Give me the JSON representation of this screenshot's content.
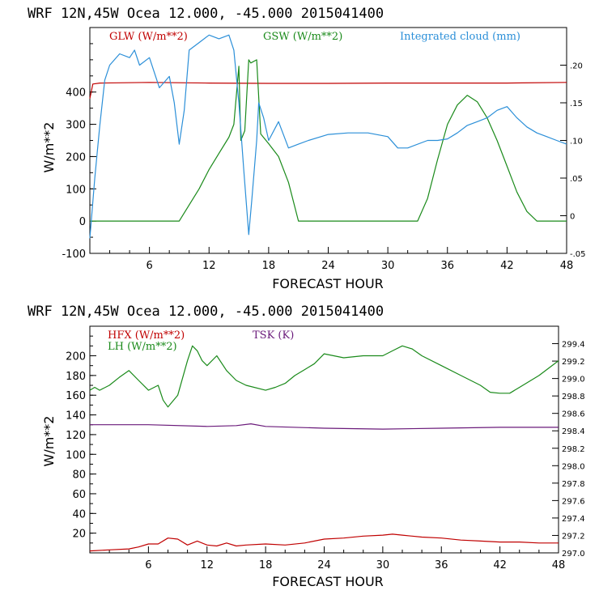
{
  "chart_data": [
    {
      "type": "line",
      "header": "WRF  12N,45W Ocea  12.000, -45.000  2015041400",
      "xlabel": "FORECAST HOUR",
      "ylabel": "W/m**2",
      "xlim": [
        0,
        48
      ],
      "xticks": [
        "6",
        "12",
        "18",
        "24",
        "30",
        "36",
        "42",
        "48"
      ],
      "ylim": [
        -100,
        600
      ],
      "yticks": [
        "-100",
        "0",
        "100",
        "200",
        "300",
        "400"
      ],
      "right_axis": {
        "ylim": [
          -0.05,
          0.25
        ],
        "ticks": [
          ".20",
          ".15",
          ".10",
          ".05",
          "0",
          "-.05"
        ]
      },
      "series": [
        {
          "name": "GLW (W/m**2)",
          "color": "#c00000",
          "axis": "left",
          "x": [
            0,
            0.3,
            1,
            6,
            12,
            18,
            24,
            30,
            36,
            42,
            48
          ],
          "y": [
            380,
            425,
            428,
            430,
            428,
            427,
            427,
            428,
            428,
            428,
            430
          ]
        },
        {
          "name": "GSW (W/m**2)",
          "color": "#1a8a1a",
          "axis": "left",
          "x": [
            0,
            9,
            10,
            11,
            12,
            13,
            14,
            14.5,
            15,
            15.2,
            15.6,
            16,
            16.2,
            16.8,
            17.2,
            18,
            19,
            20,
            21,
            33,
            34,
            35,
            36,
            37,
            38,
            39,
            40,
            41,
            42,
            43,
            44,
            45,
            48
          ],
          "y": [
            0,
            0,
            50,
            100,
            160,
            210,
            260,
            300,
            480,
            250,
            280,
            500,
            490,
            500,
            270,
            240,
            200,
            120,
            0,
            0,
            70,
            190,
            300,
            360,
            390,
            370,
            320,
            250,
            170,
            90,
            30,
            0,
            0
          ]
        },
        {
          "name": "Integrated cloud (mm)",
          "color": "#2b8fd8",
          "axis": "right",
          "x": [
            0,
            0.5,
            1,
            1.5,
            2,
            3,
            4,
            4.5,
            5,
            6,
            7,
            8,
            8.5,
            9,
            9.5,
            10,
            11,
            12,
            13,
            14,
            14.5,
            15,
            15.5,
            16,
            16.3,
            16.8,
            17,
            17.5,
            18,
            19,
            20,
            21,
            22,
            24,
            26,
            28,
            30,
            31,
            32,
            34,
            35,
            36,
            37,
            38,
            39,
            40,
            41,
            42,
            43,
            44,
            45,
            46,
            47,
            48
          ],
          "y": [
            -0.03,
            0.05,
            0.12,
            0.18,
            0.2,
            0.215,
            0.21,
            0.22,
            0.2,
            0.21,
            0.17,
            0.185,
            0.15,
            0.095,
            0.14,
            0.22,
            0.23,
            0.24,
            0.235,
            0.24,
            0.22,
            0.15,
            0.06,
            -0.025,
            0.02,
            0.1,
            0.15,
            0.13,
            0.1,
            0.125,
            0.09,
            0.095,
            0.1,
            0.108,
            0.11,
            0.11,
            0.105,
            0.09,
            0.09,
            0.1,
            0.1,
            0.102,
            0.11,
            0.12,
            0.125,
            0.13,
            0.14,
            0.145,
            0.13,
            0.118,
            0.11,
            0.105,
            0.1,
            0.095
          ]
        }
      ]
    },
    {
      "type": "line",
      "header": "WRF  12N,45W Ocea  12.000, -45.000  2015041400",
      "xlabel": "FORECAST HOUR",
      "ylabel": "W/m**2",
      "xlim": [
        0,
        48
      ],
      "xticks": [
        "6",
        "12",
        "18",
        "24",
        "30",
        "36",
        "42",
        "48"
      ],
      "ylim": [
        0,
        230
      ],
      "yticks": [
        "200",
        "180",
        "160",
        "140",
        "120",
        "100",
        "80",
        "60",
        "40",
        "20"
      ],
      "right_axis": {
        "ylim": [
          297.0,
          299.6
        ],
        "ticks": [
          "299.4",
          "299.2",
          "299.0",
          "298.8",
          "298.6",
          "298.4",
          "298.2",
          "298.0",
          "297.8",
          "297.6",
          "297.4",
          "297.2",
          "297.0"
        ]
      },
      "series": [
        {
          "name": "HFX (W/m**2)",
          "color": "#c00000",
          "axis": "left",
          "x": [
            0,
            2,
            4,
            5,
            6,
            7,
            8,
            9,
            10,
            11,
            12,
            13,
            14,
            15,
            16,
            18,
            20,
            22,
            24,
            26,
            28,
            30,
            31,
            32,
            34,
            36,
            38,
            40,
            42,
            44,
            46,
            48
          ],
          "y": [
            2,
            3,
            4,
            6,
            9,
            9,
            15,
            14,
            8,
            12,
            8,
            7,
            10,
            7,
            8,
            9,
            8,
            10,
            14,
            15,
            17,
            18,
            19,
            18,
            16,
            15,
            13,
            12,
            11,
            11,
            10,
            10
          ]
        },
        {
          "name": "LH  (W/m**2)",
          "color": "#1a8a1a",
          "axis": "left",
          "x": [
            0,
            0.5,
            1,
            2,
            3,
            4,
            5,
            6,
            7,
            7.5,
            8,
            9,
            10,
            10.5,
            11,
            11.5,
            12,
            13,
            14,
            15,
            16,
            18,
            19,
            20,
            21,
            22,
            23,
            24,
            26,
            28,
            30,
            31,
            32,
            33,
            34,
            36,
            38,
            40,
            41,
            42,
            43,
            44,
            46,
            48
          ],
          "y": [
            165,
            168,
            165,
            170,
            178,
            185,
            175,
            165,
            170,
            155,
            148,
            160,
            195,
            210,
            205,
            195,
            190,
            200,
            185,
            175,
            170,
            165,
            168,
            172,
            180,
            186,
            192,
            202,
            198,
            200,
            200,
            205,
            210,
            207,
            200,
            190,
            180,
            170,
            163,
            162,
            162,
            168,
            180,
            195
          ]
        },
        {
          "name": "TSK (K)",
          "color": "#6a1a7a",
          "axis": "right",
          "x": [
            0,
            6,
            12,
            15,
            16.5,
            18,
            24,
            30,
            36,
            42,
            48
          ],
          "y": [
            298.47,
            298.47,
            298.45,
            298.46,
            298.48,
            298.45,
            298.43,
            298.42,
            298.43,
            298.44,
            298.44
          ]
        }
      ]
    }
  ]
}
